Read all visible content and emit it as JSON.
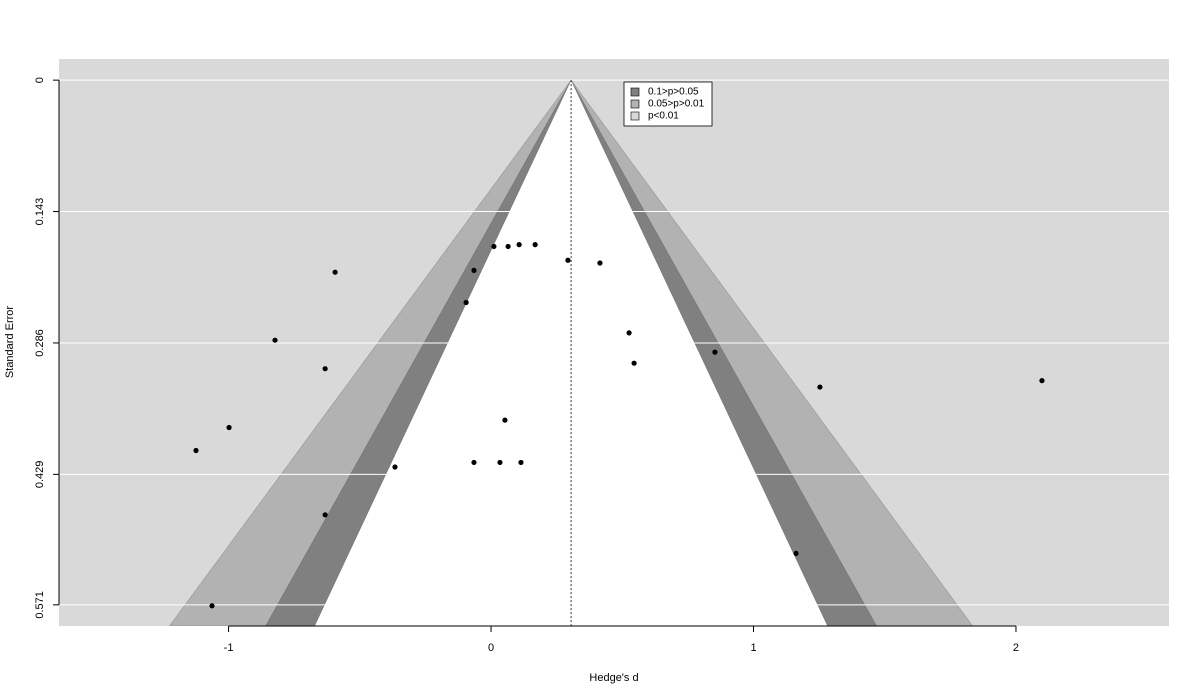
{
  "chart_data": {
    "type": "funnel",
    "x_label": "Hedge's d",
    "y_label": "Standard Error",
    "center": 0.305,
    "contours": [
      {
        "label": "0.1>p>0.05",
        "color": "#808080",
        "z": 1.645
      },
      {
        "label": "0.05>p>0.01",
        "color": "#b2b2b2",
        "z": 1.96
      },
      {
        "label": "p<0.01",
        "color": "#d9d9d9",
        "z": 2.576
      }
    ],
    "inner_color": "#ffffff",
    "point_color": "#000000",
    "grid": true,
    "xlim": [
      -1.646,
      2.583
    ],
    "xticks": [
      -1,
      0,
      1,
      2
    ],
    "ylim": [
      0.594,
      -0.023
    ],
    "yticks": [
      0,
      0.143,
      0.286,
      0.429,
      0.571
    ],
    "x": [
      -0.594,
      -0.823,
      -0.632,
      -0.998,
      -1.124,
      -1.063,
      -0.632,
      -0.366,
      -0.095,
      -0.065,
      0.011,
      0.065,
      0.107,
      0.168,
      0.293,
      0.415,
      0.526,
      0.545,
      0.853,
      1.253,
      2.099,
      1.162,
      -0.065,
      0.034,
      0.114,
      0.053
    ],
    "values": [
      0.209,
      0.283,
      0.314,
      0.378,
      0.403,
      0.572,
      0.473,
      0.421,
      0.242,
      0.207,
      0.181,
      0.181,
      0.179,
      0.179,
      0.196,
      0.199,
      0.275,
      0.308,
      0.296,
      0.334,
      0.327,
      0.515,
      0.416,
      0.416,
      0.416,
      0.37
    ]
  }
}
